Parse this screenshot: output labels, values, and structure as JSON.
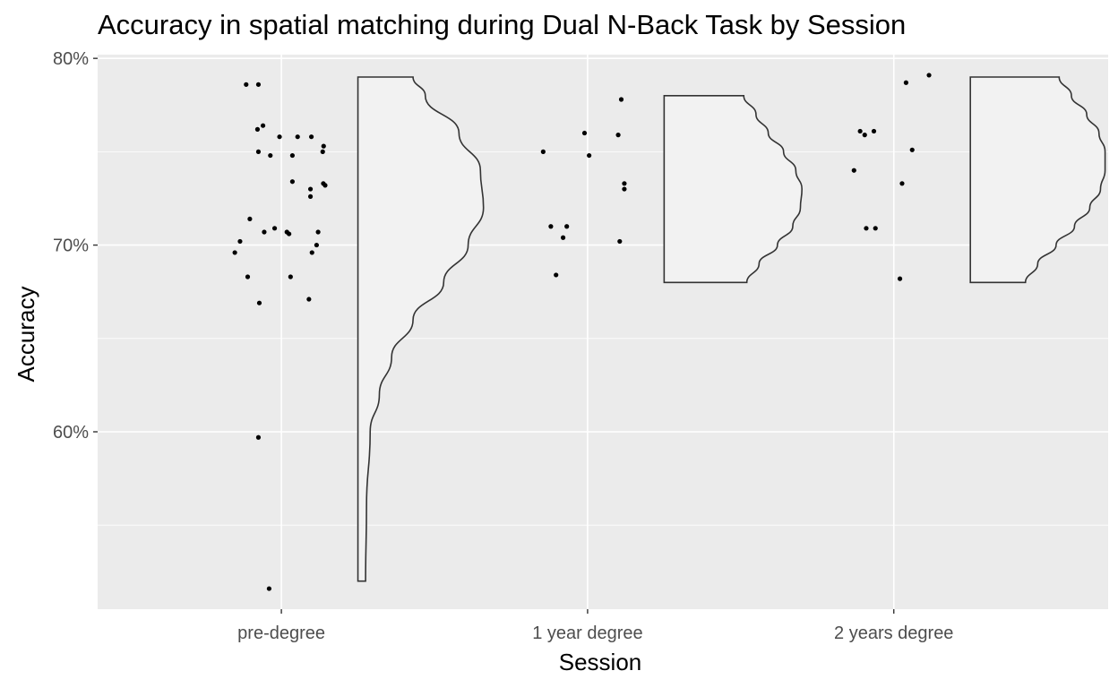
{
  "chart_data": {
    "type": "scatter",
    "title": "Accuracy in spatial matching during Dual N-Back Task by Session",
    "xlabel": "Session",
    "ylabel": "Accuracy",
    "categories": [
      "pre-degree",
      "1 year degree",
      "2 years degree"
    ],
    "yticks": [
      0.6,
      0.7,
      0.8
    ],
    "ytick_labels": [
      "60%",
      "70%",
      "80%"
    ],
    "ylim": [
      0.505,
      0.802
    ],
    "grid": true,
    "colors": {
      "panel": "#ebebeb",
      "grid": "#ffffff",
      "violin_fill": "#f2f2f2",
      "violin_stroke": "#333333",
      "point": "#000000"
    },
    "series": [
      {
        "category": "pre-degree",
        "points": [
          {
            "dx": -0.115,
            "y": 0.786
          },
          {
            "dx": -0.075,
            "y": 0.786
          },
          {
            "dx": -0.06,
            "y": 0.764
          },
          {
            "dx": -0.078,
            "y": 0.762
          },
          {
            "dx": -0.006,
            "y": 0.758
          },
          {
            "dx": 0.053,
            "y": 0.758
          },
          {
            "dx": 0.098,
            "y": 0.758
          },
          {
            "dx": 0.138,
            "y": 0.753
          },
          {
            "dx": -0.075,
            "y": 0.75
          },
          {
            "dx": -0.036,
            "y": 0.748
          },
          {
            "dx": 0.036,
            "y": 0.748
          },
          {
            "dx": 0.135,
            "y": 0.75
          },
          {
            "dx": 0.036,
            "y": 0.734
          },
          {
            "dx": 0.137,
            "y": 0.733
          },
          {
            "dx": 0.143,
            "y": 0.732
          },
          {
            "dx": 0.095,
            "y": 0.73
          },
          {
            "dx": 0.095,
            "y": 0.726
          },
          {
            "dx": -0.103,
            "y": 0.714
          },
          {
            "dx": -0.022,
            "y": 0.709
          },
          {
            "dx": -0.056,
            "y": 0.707
          },
          {
            "dx": 0.018,
            "y": 0.707
          },
          {
            "dx": 0.025,
            "y": 0.706
          },
          {
            "dx": 0.12,
            "y": 0.707
          },
          {
            "dx": -0.135,
            "y": 0.702
          },
          {
            "dx": 0.115,
            "y": 0.7
          },
          {
            "dx": -0.152,
            "y": 0.696
          },
          {
            "dx": 0.1,
            "y": 0.696
          },
          {
            "dx": -0.11,
            "y": 0.683
          },
          {
            "dx": 0.03,
            "y": 0.683
          },
          {
            "dx": -0.072,
            "y": 0.669
          },
          {
            "dx": 0.09,
            "y": 0.671
          },
          {
            "dx": -0.075,
            "y": 0.597
          },
          {
            "dx": -0.04,
            "y": 0.516
          }
        ],
        "violin": {
          "ymin": 0.52,
          "ymax": 0.79,
          "max_width": 0.41,
          "density": [
            [
              0.52,
              0.025
            ],
            [
              0.56,
              0.028
            ],
            [
              0.6,
              0.04
            ],
            [
              0.62,
              0.07
            ],
            [
              0.64,
              0.11
            ],
            [
              0.66,
              0.18
            ],
            [
              0.68,
              0.28
            ],
            [
              0.7,
              0.36
            ],
            [
              0.72,
              0.41
            ],
            [
              0.74,
              0.4
            ],
            [
              0.76,
              0.33
            ],
            [
              0.78,
              0.22
            ],
            [
              0.79,
              0.18
            ]
          ]
        }
      },
      {
        "category": "1 year degree",
        "points": [
          {
            "dx": 0.11,
            "y": 0.778
          },
          {
            "dx": -0.01,
            "y": 0.76
          },
          {
            "dx": 0.1,
            "y": 0.759
          },
          {
            "dx": -0.145,
            "y": 0.75
          },
          {
            "dx": 0.005,
            "y": 0.748
          },
          {
            "dx": 0.12,
            "y": 0.733
          },
          {
            "dx": 0.12,
            "y": 0.73
          },
          {
            "dx": -0.12,
            "y": 0.71
          },
          {
            "dx": -0.068,
            "y": 0.71
          },
          {
            "dx": -0.08,
            "y": 0.704
          },
          {
            "dx": 0.105,
            "y": 0.702
          },
          {
            "dx": -0.103,
            "y": 0.684
          }
        ],
        "violin": {
          "ymin": 0.68,
          "ymax": 0.78,
          "max_width": 0.45,
          "density": [
            [
              0.68,
              0.27
            ],
            [
              0.69,
              0.31
            ],
            [
              0.7,
              0.37
            ],
            [
              0.71,
              0.42
            ],
            [
              0.72,
              0.445
            ],
            [
              0.73,
              0.45
            ],
            [
              0.74,
              0.43
            ],
            [
              0.75,
              0.39
            ],
            [
              0.76,
              0.34
            ],
            [
              0.77,
              0.3
            ],
            [
              0.78,
              0.26
            ]
          ]
        }
      },
      {
        "category": "2 years degree",
        "points": [
          {
            "dx": 0.115,
            "y": 0.791
          },
          {
            "dx": 0.04,
            "y": 0.787
          },
          {
            "dx": -0.11,
            "y": 0.761
          },
          {
            "dx": -0.095,
            "y": 0.759
          },
          {
            "dx": -0.065,
            "y": 0.761
          },
          {
            "dx": 0.06,
            "y": 0.751
          },
          {
            "dx": -0.13,
            "y": 0.74
          },
          {
            "dx": 0.027,
            "y": 0.733
          },
          {
            "dx": -0.09,
            "y": 0.709
          },
          {
            "dx": -0.06,
            "y": 0.709
          },
          {
            "dx": 0.02,
            "y": 0.682
          }
        ],
        "violin": {
          "ymin": 0.68,
          "ymax": 0.79,
          "max_width": 0.44,
          "density": [
            [
              0.68,
              0.18
            ],
            [
              0.69,
              0.22
            ],
            [
              0.7,
              0.28
            ],
            [
              0.71,
              0.34
            ],
            [
              0.72,
              0.39
            ],
            [
              0.73,
              0.425
            ],
            [
              0.74,
              0.44
            ],
            [
              0.75,
              0.44
            ],
            [
              0.76,
              0.42
            ],
            [
              0.77,
              0.38
            ],
            [
              0.78,
              0.33
            ],
            [
              0.79,
              0.29
            ]
          ]
        }
      }
    ]
  }
}
